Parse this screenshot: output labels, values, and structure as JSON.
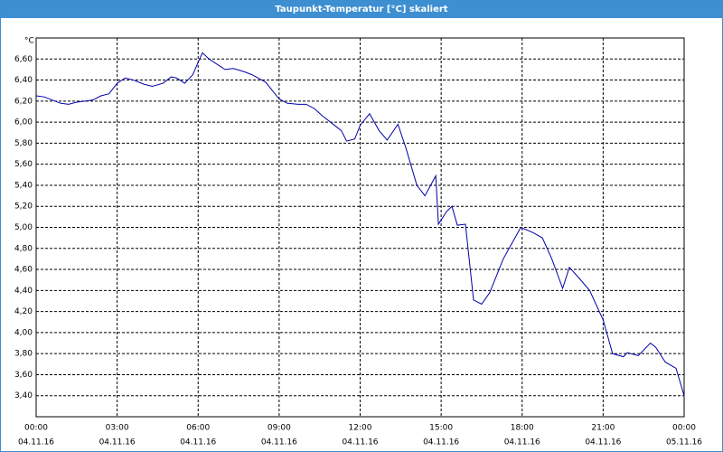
{
  "window_title": "Taupunkt-Temperatur [°C] skaliert",
  "chart_data": {
    "type": "line",
    "y_label": "°C",
    "x": [
      0,
      0.3,
      0.6,
      0.9,
      1.2,
      1.5,
      1.8,
      2.1,
      2.4,
      2.7,
      3.0,
      3.3,
      3.6,
      4.0,
      4.3,
      4.7,
      5.0,
      5.2,
      5.5,
      5.8,
      6.0,
      6.16,
      6.4,
      6.7,
      7.0,
      7.3,
      7.7,
      8.0,
      8.5,
      9.0,
      9.3,
      9.7,
      10.0,
      10.3,
      10.6,
      11.0,
      11.3,
      11.5,
      11.8,
      12.0,
      12.35,
      12.7,
      13.0,
      13.4,
      13.7,
      14.1,
      14.4,
      14.8,
      14.9,
      15.2,
      15.4,
      15.6,
      15.9,
      16.2,
      16.5,
      16.8,
      17.3,
      17.95,
      18.4,
      18.75,
      19.1,
      19.5,
      19.75,
      20.1,
      20.5,
      21.0,
      21.35,
      21.75,
      21.9,
      22.3,
      22.75,
      22.95,
      23.3,
      23.7,
      24.0
    ],
    "series": [
      {
        "name": "Taupunkt",
        "color": "#0000a8",
        "values": [
          6.25,
          6.24,
          6.21,
          6.18,
          6.17,
          6.19,
          6.2,
          6.21,
          6.25,
          6.27,
          6.37,
          6.42,
          6.4,
          6.36,
          6.34,
          6.37,
          6.43,
          6.42,
          6.37,
          6.45,
          6.57,
          6.66,
          6.6,
          6.55,
          6.5,
          6.51,
          6.48,
          6.45,
          6.38,
          6.22,
          6.18,
          6.17,
          6.17,
          6.13,
          6.06,
          5.98,
          5.92,
          5.82,
          5.84,
          5.97,
          6.08,
          5.92,
          5.83,
          5.98,
          5.75,
          5.4,
          5.3,
          5.49,
          5.03,
          5.15,
          5.2,
          5.02,
          5.03,
          4.31,
          4.27,
          4.38,
          4.7,
          5.0,
          4.95,
          4.9,
          4.7,
          4.42,
          4.62,
          4.52,
          4.4,
          4.12,
          3.8,
          3.77,
          3.81,
          3.78,
          3.9,
          3.86,
          3.72,
          3.66,
          3.4
        ]
      }
    ],
    "xlim": [
      0,
      24
    ],
    "xticks": [
      {
        "value": 0,
        "label": "00:00"
      },
      {
        "value": 3,
        "label": "03:00"
      },
      {
        "value": 6,
        "label": "06:00"
      },
      {
        "value": 9,
        "label": "09:00"
      },
      {
        "value": 12,
        "label": "12:00"
      },
      {
        "value": 15,
        "label": "15:00"
      },
      {
        "value": 18,
        "label": "18:00"
      },
      {
        "value": 21,
        "label": "21:00"
      },
      {
        "value": 24,
        "label": "00:00"
      }
    ],
    "xtick_dates": [
      "04.11.16",
      "04.11.16",
      "04.11.16",
      "04.11.16",
      "04.11.16",
      "04.11.16",
      "04.11.16",
      "04.11.16",
      "05.11.16"
    ],
    "ylim": [
      3.2,
      6.8
    ],
    "yticks": [
      {
        "value": 3.4,
        "label": "3,40"
      },
      {
        "value": 3.6,
        "label": "3,60"
      },
      {
        "value": 3.8,
        "label": "3,80"
      },
      {
        "value": 4.0,
        "label": "4,00"
      },
      {
        "value": 4.2,
        "label": "4,20"
      },
      {
        "value": 4.4,
        "label": "4,40"
      },
      {
        "value": 4.6,
        "label": "4,60"
      },
      {
        "value": 4.8,
        "label": "4,80"
      },
      {
        "value": 5.0,
        "label": "5,00"
      },
      {
        "value": 5.2,
        "label": "5,20"
      },
      {
        "value": 5.4,
        "label": "5,40"
      },
      {
        "value": 5.6,
        "label": "5,60"
      },
      {
        "value": 5.8,
        "label": "5,80"
      },
      {
        "value": 6.0,
        "label": "6,00"
      },
      {
        "value": 6.2,
        "label": "6,20"
      },
      {
        "value": 6.4,
        "label": "6,40"
      },
      {
        "value": 6.6,
        "label": "6,60"
      }
    ],
    "grid": true
  }
}
